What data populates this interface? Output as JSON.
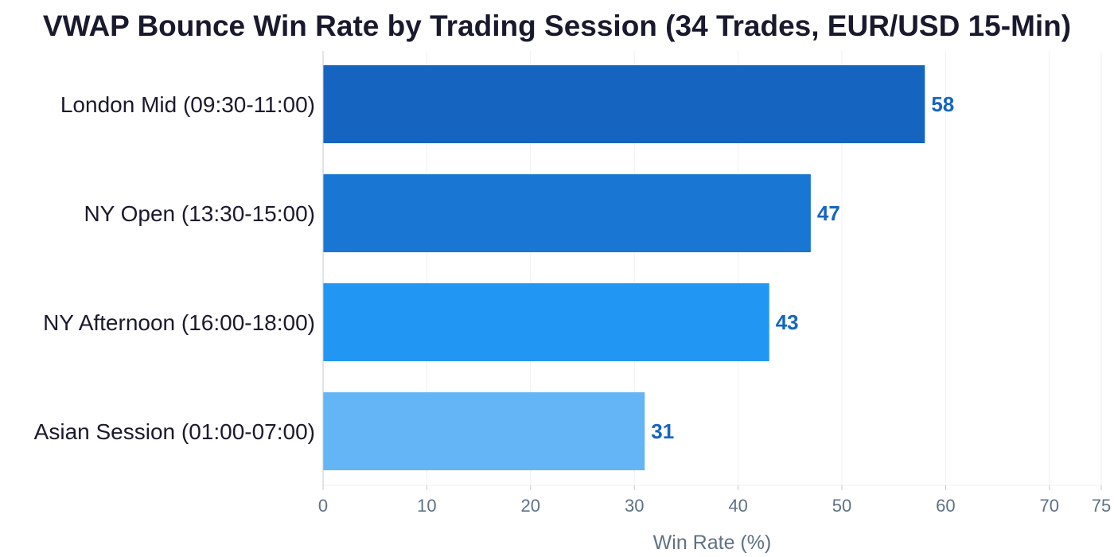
{
  "chart_data": {
    "type": "bar",
    "orientation": "horizontal",
    "title": "VWAP Bounce Win Rate by Trading Session (34 Trades, EUR/USD 15-Min)",
    "xlabel": "Win Rate (%)",
    "ylabel": "",
    "categories": [
      "London Mid (09:30-11:00)",
      "NY Open (13:30-15:00)",
      "NY Afternoon (16:00-18:00)",
      "Asian Session (01:00-07:00)"
    ],
    "values": [
      58,
      47,
      43,
      31
    ],
    "bar_colors": [
      "#1565c0",
      "#1976d2",
      "#2196f3",
      "#64b5f6"
    ],
    "value_label_color": "#1565c0",
    "xlim": [
      0,
      75
    ],
    "xticks": [
      0,
      10,
      20,
      30,
      40,
      50,
      60,
      70,
      75
    ],
    "grid": true
  }
}
